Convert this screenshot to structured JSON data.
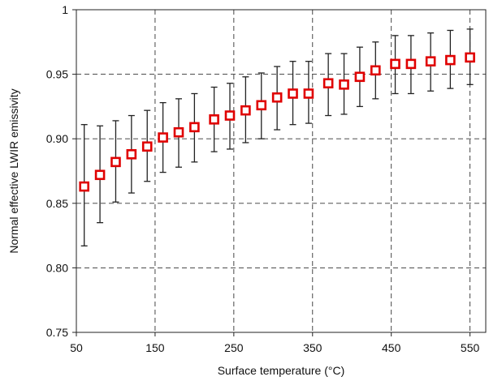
{
  "chart_data": {
    "type": "scatter",
    "title": "",
    "xlabel": "Surface temperature  (°C)",
    "ylabel": "Normal effective LWIR emissivity",
    "xlim": [
      50,
      570
    ],
    "ylim": [
      0.75,
      1.0
    ],
    "x_ticks": [
      50,
      150,
      250,
      350,
      450,
      550
    ],
    "x_tick_labels": [
      "50",
      "150",
      "250",
      "350",
      "450",
      "550"
    ],
    "y_ticks": [
      0.75,
      0.8,
      0.85,
      0.9,
      0.95,
      1.0
    ],
    "y_tick_labels": [
      "0.75",
      "0.80",
      "0.85",
      "0.90",
      "0.95",
      "1"
    ],
    "grid": true,
    "grid_style": "dashed",
    "marker": "hollow square",
    "marker_color": "#e00000",
    "errorbar_color": "#222222",
    "grid_color": "#333333",
    "series": [
      {
        "points": [
          {
            "x": 60,
            "y": 0.863,
            "low": 0.817,
            "high": 0.911
          },
          {
            "x": 80,
            "y": 0.872,
            "low": 0.835,
            "high": 0.91
          },
          {
            "x": 100,
            "y": 0.882,
            "low": 0.851,
            "high": 0.914
          },
          {
            "x": 120,
            "y": 0.888,
            "low": 0.858,
            "high": 0.918
          },
          {
            "x": 140,
            "y": 0.894,
            "low": 0.867,
            "high": 0.922
          },
          {
            "x": 160,
            "y": 0.901,
            "low": 0.874,
            "high": 0.928
          },
          {
            "x": 180,
            "y": 0.905,
            "low": 0.878,
            "high": 0.931
          },
          {
            "x": 200,
            "y": 0.909,
            "low": 0.882,
            "high": 0.935
          },
          {
            "x": 225,
            "y": 0.915,
            "low": 0.89,
            "high": 0.94
          },
          {
            "x": 245,
            "y": 0.918,
            "low": 0.892,
            "high": 0.943
          },
          {
            "x": 265,
            "y": 0.922,
            "low": 0.897,
            "high": 0.948
          },
          {
            "x": 285,
            "y": 0.926,
            "low": 0.9,
            "high": 0.951
          },
          {
            "x": 305,
            "y": 0.932,
            "low": 0.907,
            "high": 0.956
          },
          {
            "x": 325,
            "y": 0.935,
            "low": 0.911,
            "high": 0.96
          },
          {
            "x": 345,
            "y": 0.935,
            "low": 0.912,
            "high": 0.96
          },
          {
            "x": 370,
            "y": 0.943,
            "low": 0.918,
            "high": 0.966
          },
          {
            "x": 390,
            "y": 0.942,
            "low": 0.919,
            "high": 0.966
          },
          {
            "x": 410,
            "y": 0.948,
            "low": 0.925,
            "high": 0.971
          },
          {
            "x": 430,
            "y": 0.953,
            "low": 0.931,
            "high": 0.975
          },
          {
            "x": 455,
            "y": 0.958,
            "low": 0.935,
            "high": 0.98
          },
          {
            "x": 475,
            "y": 0.958,
            "low": 0.935,
            "high": 0.98
          },
          {
            "x": 500,
            "y": 0.96,
            "low": 0.937,
            "high": 0.982
          },
          {
            "x": 525,
            "y": 0.961,
            "low": 0.939,
            "high": 0.984
          },
          {
            "x": 550,
            "y": 0.963,
            "low": 0.942,
            "high": 0.985
          }
        ]
      }
    ]
  }
}
